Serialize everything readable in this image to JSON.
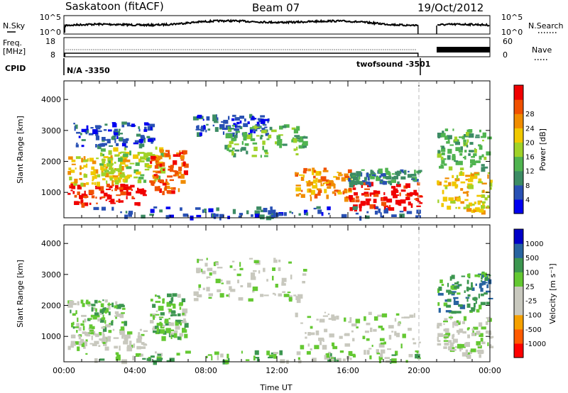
{
  "header": {
    "station": "Saskatoon (fitACF)",
    "beam": "Beam 07",
    "date": "19/Oct/2012"
  },
  "noise_panel": {
    "left_label": "N.Sky",
    "right_label": "N.Search",
    "left_ticks": [
      "10^5",
      "10^0"
    ],
    "right_ticks": [
      "10^5",
      "10^0"
    ]
  },
  "freq_panel": {
    "left_label_line1": "Freq.",
    "left_label_line2": "[MHz]",
    "right_label": "Nave",
    "left_ticks": [
      "18",
      "8"
    ],
    "right_ticks": [
      "60",
      "0"
    ]
  },
  "cpid": {
    "label": "CPID",
    "program_left": "N/A -3350",
    "program_right": "twofsound -3501"
  },
  "x_axis": {
    "label": "Time UT",
    "ticks": [
      "00:00",
      "04:00",
      "08:00",
      "12:00",
      "16:00",
      "20:00",
      "00:00"
    ]
  },
  "colors": {
    "power": [
      "#0000f0",
      "#2850b4",
      "#3c8c64",
      "#50b450",
      "#a0d228",
      "#f0c800",
      "#f08c00",
      "#f05000",
      "#f00000"
    ],
    "velocity": [
      "#ff0000",
      "#ff5a00",
      "#f5a000",
      "#c8c8be",
      "#c8c8be",
      "#64c832",
      "#3c9650",
      "#2864a0",
      "#0000c8"
    ],
    "ground_scatter": "#c8c8be"
  },
  "chart_data": [
    {
      "type": "heatmap",
      "panel": "power",
      "ylabel": "Slant Range [km]",
      "colorbar_label": "Power [dB]",
      "colorbar_ticks": [
        "4",
        "8",
        "12",
        "16",
        "20",
        "24",
        "28"
      ],
      "y_ticks": [
        "1000",
        "2000",
        "3000",
        "4000"
      ],
      "xlim_hours": [
        0,
        24
      ],
      "ylim_km": [
        180,
        4600
      ],
      "data_gap_hours": [
        20.0,
        21.0
      ],
      "echo_regions": [
        {
          "t": [
            0.2,
            4.5
          ],
          "r": [
            650,
            1300
          ],
          "level": 8
        },
        {
          "t": [
            0.2,
            3.5
          ],
          "r": [
            1300,
            2200
          ],
          "level": 5
        },
        {
          "t": [
            2.0,
            5.5
          ],
          "r": [
            1400,
            2500
          ],
          "level": 4
        },
        {
          "t": [
            4.8,
            6.8
          ],
          "r": [
            1000,
            2400
          ],
          "level": 7
        },
        {
          "t": [
            0.5,
            5.0
          ],
          "r": [
            2500,
            3300
          ],
          "level": 1
        },
        {
          "t": [
            7.2,
            11.5
          ],
          "r": [
            2900,
            3550
          ],
          "level": 1
        },
        {
          "t": [
            9.0,
            13.5
          ],
          "r": [
            2200,
            3200
          ],
          "level": 3
        },
        {
          "t": [
            13.0,
            16.0
          ],
          "r": [
            850,
            1800
          ],
          "level": 6
        },
        {
          "t": [
            16.0,
            20.0
          ],
          "r": [
            500,
            1350
          ],
          "level": 8
        },
        {
          "t": [
            16.0,
            20.0
          ],
          "r": [
            1300,
            1800
          ],
          "level": 2
        },
        {
          "t": [
            1.0,
            20.0
          ],
          "r": [
            230,
            560
          ],
          "level": 1
        },
        {
          "t": [
            21.0,
            24.0
          ],
          "r": [
            400,
            1700
          ],
          "level": 5
        },
        {
          "t": [
            21.0,
            24.0
          ],
          "r": [
            1800,
            3100
          ],
          "level": 3
        }
      ]
    },
    {
      "type": "heatmap",
      "panel": "velocity",
      "ylabel": "Slant Range [km]",
      "colorbar_label": "Velocity [m s⁻¹]",
      "colorbar_ticks": [
        "-1000",
        "-500",
        "-100",
        "-25",
        "25",
        "100",
        "500",
        "1000"
      ],
      "y_ticks": [
        "1000",
        "2000",
        "3000",
        "4000"
      ],
      "xlim_hours": [
        0,
        24
      ],
      "ylim_km": [
        180,
        4600
      ],
      "data_gap_hours": [
        20.0,
        21.0
      ],
      "echo_regions": [
        {
          "t": [
            0.2,
            4.5
          ],
          "r": [
            650,
            1300
          ],
          "level": 4
        },
        {
          "t": [
            0.2,
            3.5
          ],
          "r": [
            1300,
            2200
          ],
          "level": 5
        },
        {
          "t": [
            4.8,
            6.8
          ],
          "r": [
            1000,
            2400
          ],
          "level": 5
        },
        {
          "t": [
            7.2,
            13.5
          ],
          "r": [
            2200,
            3550
          ],
          "level": 4
        },
        {
          "t": [
            13.0,
            20.0
          ],
          "r": [
            500,
            1800
          ],
          "level": 4
        },
        {
          "t": [
            1.0,
            20.0
          ],
          "r": [
            230,
            560
          ],
          "level": 5
        },
        {
          "t": [
            21.0,
            24.0
          ],
          "r": [
            400,
            1700
          ],
          "level": 4
        },
        {
          "t": [
            21.0,
            24.0
          ],
          "r": [
            1800,
            3100
          ],
          "level": 6
        }
      ]
    }
  ]
}
